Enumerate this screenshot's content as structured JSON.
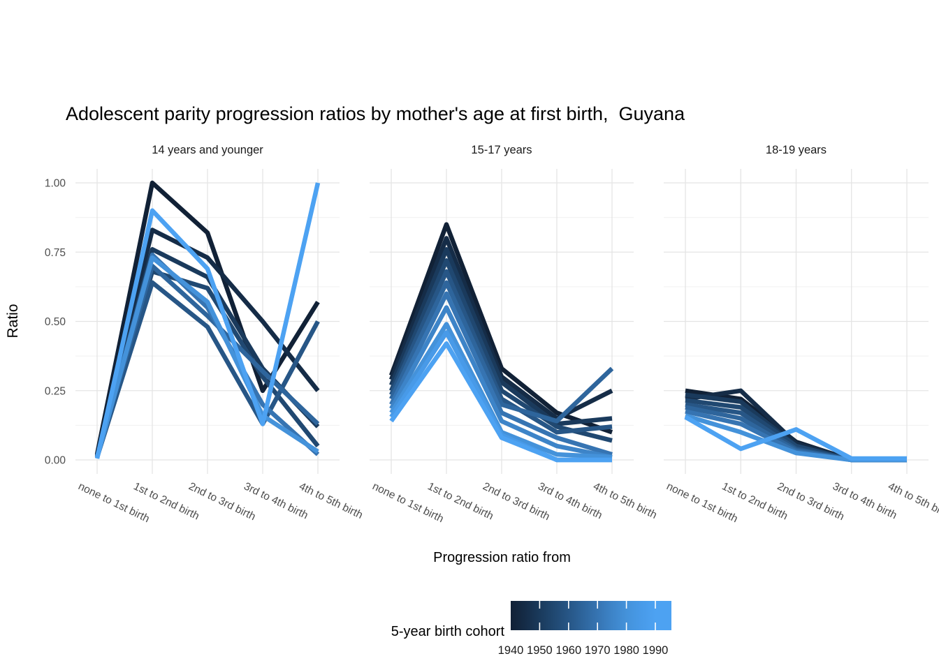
{
  "title": "Adolescent parity progression ratios by mother's age at first birth,  Guyana",
  "y_axis_label": "Ratio",
  "x_axis_label": "Progression ratio from",
  "legend": {
    "title": "5-year birth cohort",
    "tick_labels": [
      "1940",
      "1950",
      "1960",
      "1970",
      "1980",
      "1990"
    ]
  },
  "chart_data": {
    "type": "line",
    "title": "Adolescent parity progression ratios by mother's age at first birth,  Guyana",
    "xlabel": "Progression ratio from",
    "ylabel": "Ratio",
    "ylim": [
      0,
      1
    ],
    "grid": "on",
    "legend_position": "bottom",
    "categories": [
      "none to 1st birth",
      "1st to 2nd birth",
      "2nd to 3rd birth",
      "3rd to 4th birth",
      "4th to 5th birth"
    ],
    "y_ticks": [
      {
        "label": "0.00",
        "value": 0.0
      },
      {
        "label": "0.25",
        "value": 0.25
      },
      {
        "label": "0.50",
        "value": 0.5
      },
      {
        "label": "0.75",
        "value": 0.75
      },
      {
        "label": "1.00",
        "value": 1.0
      }
    ],
    "color_scale": {
      "label": "5-year birth cohort",
      "min": 1940,
      "max": 1990,
      "cohort_colors": {
        "1940": "#112136",
        "1945": "#152c47",
        "1950": "#1a3a5c",
        "1955": "#204871",
        "1960": "#275686",
        "1965": "#2e659c",
        "1970": "#3674b2",
        "1975": "#3d84c8",
        "1980": "#4492da",
        "1985": "#489ae8",
        "1990": "#4da2f2"
      }
    },
    "facets": [
      {
        "label": "14 years and younger",
        "series": [
          {
            "cohort": 1940,
            "values": [
              0.02,
              1.0,
              0.82,
              0.25,
              0.57
            ]
          },
          {
            "cohort": 1945,
            "values": [
              0.015,
              0.83,
              0.73,
              0.5,
              0.25
            ]
          },
          {
            "cohort": 1950,
            "values": [
              0.012,
              0.76,
              0.66,
              0.33,
              0.12
            ]
          },
          {
            "cohort": 1955,
            "values": [
              0.01,
              0.68,
              0.62,
              0.3,
              0.05
            ]
          },
          {
            "cohort": 1960,
            "values": [
              0.01,
              0.64,
              0.48,
              0.13,
              0.5
            ]
          },
          {
            "cohort": 1965,
            "values": [
              0.01,
              0.7,
              0.52,
              0.32,
              0.13
            ]
          },
          {
            "cohort": 1970,
            "values": [
              0.01,
              0.74,
              0.55,
              0.2,
              0.02
            ]
          },
          {
            "cohort": 1980,
            "values": [
              0.008,
              0.73,
              0.57,
              0.16,
              0.03
            ]
          },
          {
            "cohort": 1990,
            "values": [
              0.005,
              0.9,
              0.69,
              0.13,
              1.0
            ]
          }
        ]
      },
      {
        "label": "15-17 years",
        "series": [
          {
            "cohort": 1940,
            "values": [
              0.305,
              0.85,
              0.33,
              0.17,
              0.1
            ]
          },
          {
            "cohort": 1945,
            "values": [
              0.29,
              0.8,
              0.3,
              0.15,
              0.25
            ]
          },
          {
            "cohort": 1950,
            "values": [
              0.27,
              0.76,
              0.28,
              0.13,
              0.15
            ]
          },
          {
            "cohort": 1955,
            "values": [
              0.25,
              0.72,
              0.25,
              0.12,
              0.07
            ]
          },
          {
            "cohort": 1960,
            "values": [
              0.235,
              0.68,
              0.22,
              0.1,
              0.12
            ]
          },
          {
            "cohort": 1965,
            "values": [
              0.22,
              0.64,
              0.2,
              0.14,
              0.33
            ]
          },
          {
            "cohort": 1970,
            "values": [
              0.2,
              0.6,
              0.17,
              0.08,
              0.02
            ]
          },
          {
            "cohort": 1975,
            "values": [
              0.185,
              0.55,
              0.14,
              0.05,
              0.01
            ]
          },
          {
            "cohort": 1980,
            "values": [
              0.17,
              0.49,
              0.1,
              0.02,
              0.01
            ]
          },
          {
            "cohort": 1985,
            "values": [
              0.155,
              0.46,
              0.09,
              0.0,
              0.0
            ]
          },
          {
            "cohort": 1990,
            "values": [
              0.14,
              0.42,
              0.08,
              0.0,
              0.0
            ]
          }
        ]
      },
      {
        "label": "18-19 years",
        "series": [
          {
            "cohort": 1940,
            "values": [
              0.25,
              0.22,
              0.065,
              0.0,
              0.0
            ]
          },
          {
            "cohort": 1945,
            "values": [
              0.22,
              0.25,
              0.06,
              0.0,
              0.0
            ]
          },
          {
            "cohort": 1950,
            "values": [
              0.235,
              0.21,
              0.05,
              0.0,
              0.0
            ]
          },
          {
            "cohort": 1955,
            "values": [
              0.215,
              0.19,
              0.05,
              0.0,
              0.0
            ]
          },
          {
            "cohort": 1960,
            "values": [
              0.2,
              0.17,
              0.04,
              0.0,
              0.0
            ]
          },
          {
            "cohort": 1965,
            "values": [
              0.19,
              0.15,
              0.035,
              0.0,
              0.0
            ]
          },
          {
            "cohort": 1970,
            "values": [
              0.175,
              0.13,
              0.03,
              0.0,
              0.0
            ]
          },
          {
            "cohort": 1980,
            "values": [
              0.16,
              0.1,
              0.025,
              0.0,
              0.0
            ]
          },
          {
            "cohort": 1990,
            "values": [
              0.155,
              0.04,
              0.11,
              0.005,
              0.005
            ]
          }
        ]
      }
    ]
  }
}
